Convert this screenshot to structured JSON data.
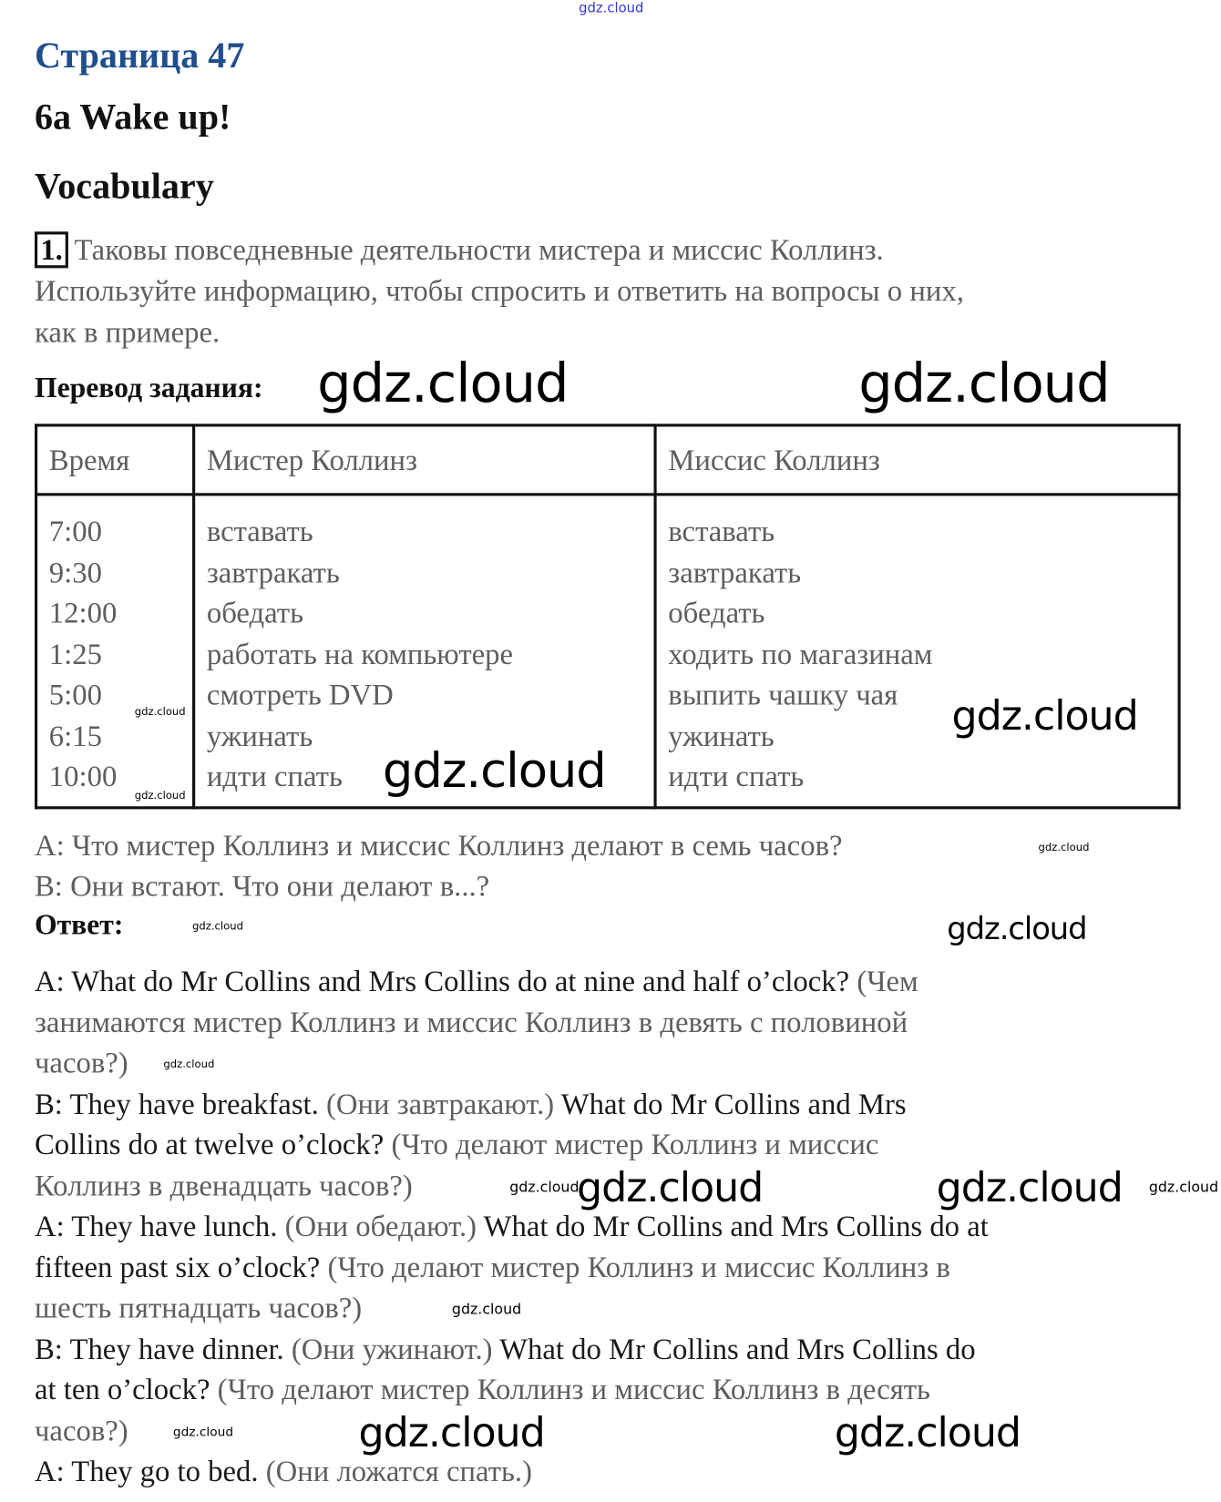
{
  "watermark": "gdz.cloud",
  "header": {
    "page_title": "Страница 47",
    "unit_title": "6a Wake up!",
    "section_title": "Vocabulary"
  },
  "task": {
    "number": "1.",
    "lines": [
      "Таковы повседневные деятельности мистера и миссис Коллинз.",
      "Используйте информацию, чтобы спросить и ответить на вопросы о них,",
      "как в примере."
    ],
    "translation_label": "Перевод задания:"
  },
  "table": {
    "headers": [
      "Время",
      "Мистер Коллинз",
      "Миссис Коллинз"
    ],
    "times": [
      "7:00",
      "9:30",
      "12:00",
      "1:25",
      "5:00",
      "6:15",
      "10:00"
    ],
    "mr": [
      "вставать",
      "завтракать",
      "обедать",
      "работать на компьютере",
      "смотреть DVD",
      "ужинать",
      "идти спать"
    ],
    "mrs": [
      "вставать",
      "завтракать",
      "обедать",
      "ходить по магазинам",
      "выпить чашку чая",
      "ужинать",
      "идти спать"
    ]
  },
  "example": [
    "A: Что мистер Коллинз и миссис Коллинз делают в семь часов?",
    "B: Они встают. Что они делают в...?"
  ],
  "answer": {
    "label": "Ответ:",
    "lines": [
      [
        {
          "lang": "en",
          "text": "A: What do Mr Collins and Mrs Collins do at nine and half o’clock? "
        },
        {
          "lang": "ru",
          "text": "(Чем"
        }
      ],
      [
        {
          "lang": "ru",
          "text": "занимаются мистер Коллинз и миссис Коллинз в девять с половиной"
        }
      ],
      [
        {
          "lang": "ru",
          "text": "часов?)"
        }
      ],
      [
        {
          "lang": "en",
          "text": "B: They have breakfast. "
        },
        {
          "lang": "ru",
          "text": "(Они завтракают.) "
        },
        {
          "lang": "en",
          "text": "What do Mr Collins and Mrs"
        }
      ],
      [
        {
          "lang": "en",
          "text": "Collins do at twelve o’clock? "
        },
        {
          "lang": "ru",
          "text": "(Что делают мистер Коллинз и миссис"
        }
      ],
      [
        {
          "lang": "ru",
          "text": "Коллинз в двенадцать часов?)"
        }
      ],
      [
        {
          "lang": "en",
          "text": "A: They have lunch. "
        },
        {
          "lang": "ru",
          "text": "(Они обедают.) "
        },
        {
          "lang": "en",
          "text": "What do Mr Collins and Mrs Collins do at"
        }
      ],
      [
        {
          "lang": "en",
          "text": "fifteen past six o’clock? "
        },
        {
          "lang": "ru",
          "text": "(Что делают мистер Коллинз и миссис Коллинз в"
        }
      ],
      [
        {
          "lang": "ru",
          "text": "шесть пятнадцать часов?)"
        }
      ],
      [
        {
          "lang": "en",
          "text": "B: They have dinner. "
        },
        {
          "lang": "ru",
          "text": "(Они ужинают.) "
        },
        {
          "lang": "en",
          "text": "What do Mr Collins and Mrs Collins do"
        }
      ],
      [
        {
          "lang": "en",
          "text": "at ten o’clock? "
        },
        {
          "lang": "ru",
          "text": "(Что делают мистер Коллинз и миссис Коллинз в десять"
        }
      ],
      [
        {
          "lang": "ru",
          "text": "часов?)"
        }
      ],
      [
        {
          "lang": "en",
          "text": "A: They go to bed. "
        },
        {
          "lang": "ru",
          "text": "(Они ложатся спать.)"
        }
      ]
    ]
  },
  "colors": {
    "title_blue": "#1f4e8c",
    "russian_text": "#5e5e5e",
    "english_text": "#1a1a1a",
    "watermark_top": "#3838c8"
  }
}
